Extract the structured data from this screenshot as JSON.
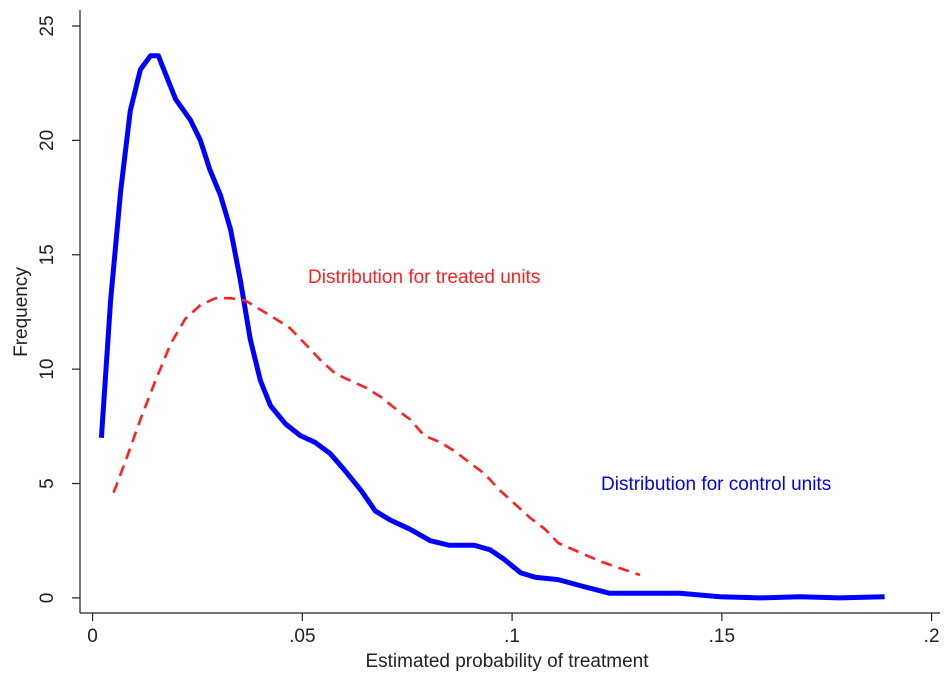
{
  "chart_data": {
    "type": "line",
    "x_label": "Estimated probability of treatment",
    "y_label": "Frequency",
    "xlim": [
      -0.003,
      0.202
    ],
    "ylim": [
      -0.66,
      25.7
    ],
    "xticks": [
      0,
      {
        "value": 0.05,
        "label": ".05"
      },
      {
        "value": 0.1,
        "label": ".1"
      },
      {
        "value": 0.15,
        "label": ".15"
      },
      {
        "value": 0.2,
        "label": ".2"
      }
    ],
    "yticks": [
      0,
      5,
      10,
      15,
      20,
      25
    ],
    "grid": false,
    "series": [
      {
        "color": "#0000ff",
        "style": "solid",
        "x": [
          0.0021,
          0.0043,
          0.0067,
          0.009,
          0.0114,
          0.0138,
          0.0157,
          0.0174,
          0.0198,
          0.0233,
          0.0257,
          0.028,
          0.0305,
          0.0329,
          0.0352,
          0.0376,
          0.04,
          0.0424,
          0.046,
          0.0495,
          0.053,
          0.0567,
          0.06,
          0.064,
          0.0674,
          0.071,
          0.0757,
          0.0805,
          0.085,
          0.091,
          0.0948,
          0.098,
          0.102,
          0.1055,
          0.111,
          0.117,
          0.1233,
          0.1305,
          0.14,
          0.1495,
          0.159,
          0.1686,
          0.178,
          0.1888
        ],
        "values": [
          7.0,
          13.0,
          17.8,
          21.3,
          23.1,
          23.7,
          23.7,
          22.9,
          21.8,
          20.9,
          20.0,
          18.7,
          17.6,
          16.1,
          13.9,
          11.3,
          9.5,
          8.4,
          7.6,
          7.1,
          6.8,
          6.3,
          5.6,
          4.7,
          3.8,
          3.4,
          3.0,
          2.5,
          2.3,
          2.3,
          2.1,
          1.7,
          1.1,
          0.9,
          0.8,
          0.5,
          0.2,
          0.2,
          0.2,
          0.05,
          0.0,
          0.05,
          0.0,
          0.05
        ]
      },
      {
        "color": "#ff2020",
        "style": "dashed",
        "x": [
          0.005,
          0.0079,
          0.0114,
          0.015,
          0.0186,
          0.0221,
          0.0257,
          0.0293,
          0.0329,
          0.0364,
          0.04,
          0.0436,
          0.047,
          0.0507,
          0.0543,
          0.0579,
          0.0614,
          0.065,
          0.0686,
          0.072,
          0.0757,
          0.079,
          0.0829,
          0.0864,
          0.09,
          0.0936,
          0.0971,
          0.1007,
          0.1043,
          0.1079,
          0.111,
          0.116,
          0.121,
          0.1257,
          0.1305
        ],
        "values": [
          4.6,
          6.0,
          7.8,
          9.5,
          11.1,
          12.2,
          12.8,
          13.1,
          13.1,
          13.0,
          12.6,
          12.2,
          11.8,
          11.1,
          10.4,
          9.8,
          9.5,
          9.2,
          8.8,
          8.3,
          7.8,
          7.1,
          6.8,
          6.4,
          5.9,
          5.4,
          4.7,
          4.1,
          3.5,
          3.0,
          2.4,
          2.0,
          1.6,
          1.3,
          1.0
        ]
      }
    ],
    "annotations": [
      {
        "text": "Distribution for treated units",
        "color": "#ff2020"
      },
      {
        "text": "Distribution for control units",
        "color": "#0000ff"
      }
    ]
  }
}
